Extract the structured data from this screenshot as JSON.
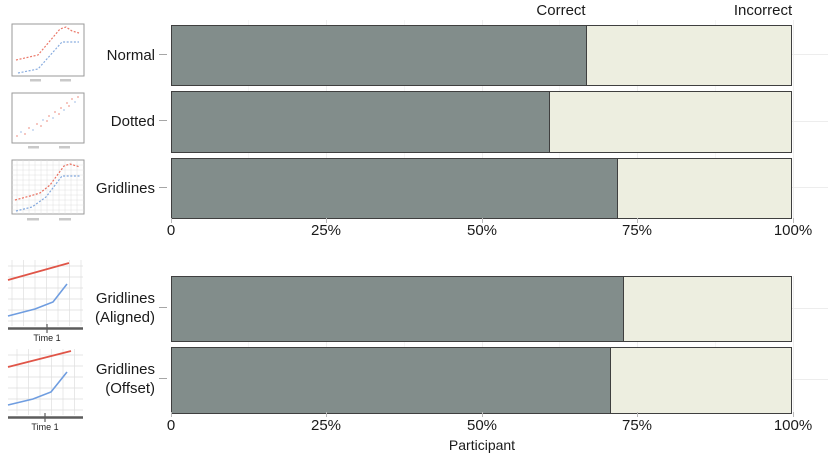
{
  "header": {
    "note": ""
  },
  "chart_data": [
    {
      "type": "bar",
      "orientation": "horizontal",
      "stacked": true,
      "categories": [
        "Normal",
        "Dotted",
        "Gridlines"
      ],
      "series": [
        {
          "name": "Correct",
          "color": "#828d8b",
          "values": [
            67,
            61,
            72
          ]
        },
        {
          "name": "Incorrect",
          "color": "#edeee0",
          "values": [
            33,
            39,
            28
          ]
        }
      ],
      "x_ticks": [
        "0",
        "25%",
        "50%",
        "75%",
        "100%"
      ],
      "xlim": [
        0,
        100
      ],
      "xlabel": "",
      "grid": "major and minor vertical, faint horizontal at row centers",
      "legend_position": "top, as column headers"
    },
    {
      "type": "bar",
      "orientation": "horizontal",
      "stacked": true,
      "categories": [
        "Gridlines (Aligned)",
        "Gridlines (Offset)"
      ],
      "series": [
        {
          "name": "Correct",
          "color": "#828d8b",
          "values": [
            73,
            71
          ]
        },
        {
          "name": "Incorrect",
          "color": "#edeee0",
          "values": [
            27,
            29
          ]
        }
      ],
      "x_ticks": [
        "0",
        "25%",
        "50%",
        "75%",
        "100%"
      ],
      "xlim": [
        0,
        100
      ],
      "xlabel": "Participant",
      "grid": "major and minor vertical, faint horizontal at row centers",
      "legend_position": "none"
    }
  ],
  "thumbnails": {
    "items": [
      {
        "name": "normal-preview",
        "axis_label": ""
      },
      {
        "name": "dotted-preview",
        "axis_label": ""
      },
      {
        "name": "gridlines-preview",
        "axis_label": ""
      },
      {
        "name": "gridlines-aligned-preview",
        "axis_label": "Time 1"
      },
      {
        "name": "gridlines-offset-preview",
        "axis_label": "Time 1"
      }
    ]
  },
  "colors": {
    "correct_fill": "#828d8b",
    "incorrect_fill": "#edeee0",
    "bar_outline": "#3f3f3f",
    "preview_red": "#e8604f",
    "preview_blue": "#7ba3dc"
  }
}
